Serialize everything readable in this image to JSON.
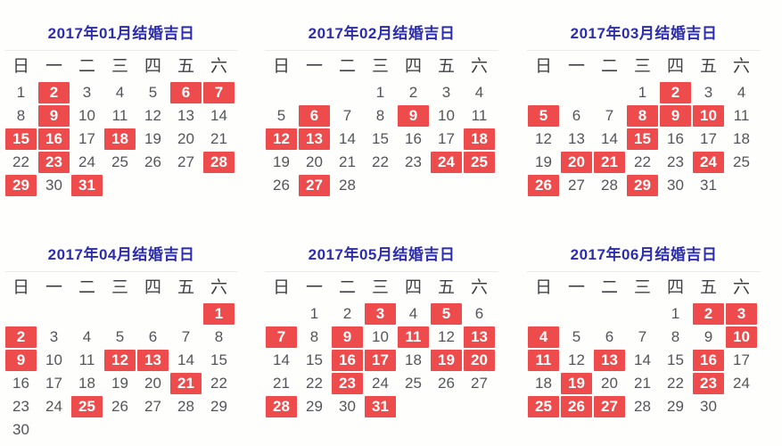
{
  "colors": {
    "title_blue": "#2b2cb0",
    "highlight_red": "#ee4c4c",
    "highlight_text": "#ffffff",
    "day_text": "#53555a",
    "weekday_text": "#3f4145",
    "divider": "#ececec",
    "background": "#fefefc"
  },
  "weekdays": [
    "日",
    "一",
    "二",
    "三",
    "四",
    "五",
    "六"
  ],
  "calendars": [
    {
      "title": "2017年01月结婚吉日",
      "first_weekday": 0,
      "days_in_month": 31,
      "highlighted": [
        2,
        6,
        7,
        9,
        15,
        16,
        18,
        23,
        28,
        29,
        31
      ]
    },
    {
      "title": "2017年02月结婚吉日",
      "first_weekday": 3,
      "days_in_month": 28,
      "highlighted": [
        6,
        9,
        12,
        13,
        18,
        24,
        25,
        27
      ]
    },
    {
      "title": "2017年03月结婚吉日",
      "first_weekday": 3,
      "days_in_month": 31,
      "highlighted": [
        2,
        5,
        8,
        9,
        10,
        15,
        20,
        21,
        24,
        26,
        29
      ]
    },
    {
      "title": "2017年04月结婚吉日",
      "first_weekday": 6,
      "days_in_month": 30,
      "highlighted": [
        1,
        2,
        9,
        12,
        13,
        21,
        25
      ]
    },
    {
      "title": "2017年05月结婚吉日",
      "first_weekday": 1,
      "days_in_month": 31,
      "highlighted": [
        3,
        5,
        7,
        9,
        11,
        13,
        16,
        17,
        19,
        20,
        23,
        28,
        31
      ]
    },
    {
      "title": "2017年06月结婚吉日",
      "first_weekday": 4,
      "days_in_month": 30,
      "highlighted": [
        2,
        3,
        4,
        10,
        11,
        13,
        16,
        19,
        23,
        25,
        26,
        27
      ]
    }
  ]
}
